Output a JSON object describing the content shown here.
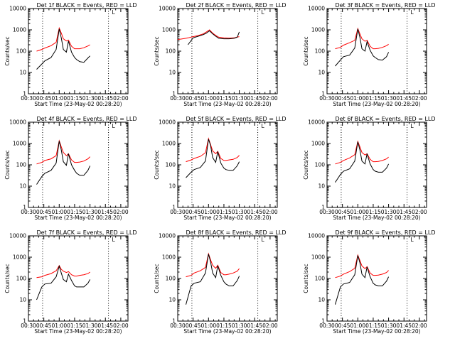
{
  "colors": {
    "events": "#000000",
    "lld": "#ff0000",
    "axis": "#000000",
    "background": "#ffffff"
  },
  "shared": {
    "xlabel": "Start Time (23-May-02 00:28:20)",
    "ylabel": "Counts/sec",
    "x_tick_labels": [
      "00:30",
      "00:45",
      "01:00",
      "01:15",
      "01:30",
      "01:45",
      "02:00"
    ],
    "x_range_min": [
      30,
      127
    ],
    "y_tick_labels": [
      "1",
      "10",
      "100",
      "1000",
      "10000"
    ],
    "y_range": [
      1,
      10000
    ],
    "y_scale": "log",
    "vlines_min": [
      43.8,
      108
    ],
    "marker_label": "L"
  },
  "chart_data": [
    {
      "type": "line",
      "title": "Det 1f BLACK = Events, RED = LLD",
      "x": [
        38,
        43,
        46,
        52,
        57,
        60,
        62,
        64,
        67,
        69,
        72,
        75,
        77,
        80,
        84,
        88,
        90
      ],
      "series": [
        {
          "name": "Events",
          "values": [
            14,
            25,
            35,
            50,
            120,
            1100,
            420,
            120,
            90,
            300,
            90,
            50,
            40,
            32,
            30,
            48,
            60
          ]
        },
        {
          "name": "LLD",
          "values": [
            100,
            120,
            140,
            180,
            260,
            1200,
            700,
            380,
            300,
            330,
            170,
            130,
            130,
            130,
            145,
            175,
            200
          ]
        }
      ]
    },
    {
      "type": "line",
      "title": "Det 2f BLACK = Events, RED = LLD",
      "x": [
        30,
        38,
        40,
        45,
        50,
        55,
        58,
        61,
        64,
        67,
        70,
        75,
        80,
        85,
        88,
        90
      ],
      "series": [
        {
          "name": "Events",
          "values": [
            null,
            null,
            200,
            420,
            500,
            600,
            700,
            900,
            650,
            500,
            400,
            380,
            380,
            400,
            450,
            800
          ]
        },
        {
          "name": "LLD",
          "values": [
            350,
            400,
            420,
            480,
            540,
            650,
            800,
            1000,
            700,
            550,
            450,
            420,
            410,
            420,
            460,
            480
          ]
        }
      ]
    },
    {
      "type": "line",
      "title": "Det 3f BLACK = Events, RED = LLD",
      "x": [
        38,
        43,
        46,
        52,
        57,
        60,
        62,
        64,
        67,
        69,
        72,
        75,
        77,
        80,
        84,
        88,
        90
      ],
      "series": [
        {
          "name": "Events",
          "values": [
            20,
            38,
            55,
            65,
            140,
            1100,
            450,
            130,
            100,
            280,
            110,
            60,
            50,
            40,
            38,
            55,
            90
          ]
        },
        {
          "name": "LLD",
          "values": [
            130,
            150,
            190,
            250,
            320,
            1150,
            650,
            380,
            290,
            320,
            170,
            130,
            130,
            135,
            150,
            180,
            210
          ]
        }
      ]
    },
    {
      "type": "line",
      "title": "Det 4f BLACK = Events, RED = LLD",
      "x": [
        38,
        43,
        46,
        52,
        57,
        60,
        62,
        64,
        67,
        69,
        72,
        75,
        77,
        80,
        84,
        88,
        90
      ],
      "series": [
        {
          "name": "Events",
          "values": [
            12,
            28,
            40,
            55,
            120,
            1300,
            500,
            140,
            95,
            330,
            100,
            55,
            40,
            32,
            32,
            55,
            90
          ]
        },
        {
          "name": "LLD",
          "values": [
            110,
            130,
            160,
            190,
            270,
            1350,
            700,
            380,
            270,
            330,
            170,
            130,
            130,
            135,
            150,
            190,
            240
          ]
        }
      ]
    },
    {
      "type": "line",
      "title": "Det 5f BLACK = Events, RED = LLD",
      "x": [
        38,
        43,
        46,
        52,
        57,
        60,
        62,
        64,
        67,
        69,
        72,
        75,
        77,
        80,
        84,
        88,
        90
      ],
      "series": [
        {
          "name": "Events",
          "values": [
            25,
            45,
            60,
            75,
            150,
            1600,
            800,
            220,
            130,
            420,
            120,
            70,
            60,
            55,
            55,
            90,
            140
          ]
        },
        {
          "name": "LLD",
          "values": [
            140,
            170,
            200,
            250,
            370,
            1700,
            900,
            450,
            330,
            430,
            200,
            160,
            160,
            170,
            180,
            220,
            280
          ]
        }
      ]
    },
    {
      "type": "line",
      "title": "Det 6f BLACK = Events, RED = LLD",
      "x": [
        38,
        43,
        46,
        52,
        57,
        60,
        62,
        64,
        67,
        69,
        72,
        75,
        77,
        80,
        84,
        88,
        90
      ],
      "series": [
        {
          "name": "Events",
          "values": [
            15,
            35,
            50,
            65,
            150,
            1200,
            500,
            150,
            110,
            330,
            110,
            60,
            50,
            45,
            45,
            70,
            110
          ]
        },
        {
          "name": "LLD",
          "values": [
            110,
            130,
            160,
            210,
            300,
            1250,
            700,
            380,
            290,
            330,
            180,
            140,
            140,
            145,
            160,
            190,
            230
          ]
        }
      ]
    },
    {
      "type": "line",
      "title": "Det 7f BLACK = Events, RED = LLD",
      "x": [
        38,
        43,
        46,
        52,
        57,
        60,
        62,
        64,
        67,
        69,
        72,
        75,
        77,
        80,
        84,
        88,
        90
      ],
      "series": [
        {
          "name": "Events",
          "values": [
            10,
            40,
            55,
            60,
            120,
            380,
            180,
            90,
            70,
            160,
            80,
            45,
            40,
            40,
            40,
            60,
            90
          ]
        },
        {
          "name": "LLD",
          "values": [
            110,
            120,
            140,
            170,
            230,
            400,
            270,
            220,
            190,
            210,
            150,
            130,
            130,
            140,
            150,
            170,
            200
          ]
        }
      ]
    },
    {
      "type": "line",
      "title": "Det 8f BLACK = Events, RED = LLD",
      "x": [
        38,
        43,
        46,
        52,
        57,
        60,
        62,
        64,
        67,
        69,
        72,
        75,
        77,
        80,
        84,
        88,
        90
      ],
      "series": [
        {
          "name": "Events",
          "values": [
            6,
            45,
            60,
            70,
            180,
            1400,
            600,
            180,
            110,
            400,
            140,
            70,
            55,
            45,
            45,
            80,
            130
          ]
        },
        {
          "name": "LLD",
          "values": [
            120,
            140,
            180,
            230,
            330,
            1450,
            750,
            420,
            300,
            420,
            190,
            150,
            150,
            160,
            180,
            220,
            290
          ]
        }
      ]
    },
    {
      "type": "line",
      "title": "Det 9f BLACK = Events, RED = LLD",
      "x": [
        38,
        43,
        46,
        52,
        57,
        60,
        62,
        64,
        67,
        69,
        72,
        75,
        77,
        80,
        84,
        88,
        90
      ],
      "series": [
        {
          "name": "Events",
          "values": [
            6,
            40,
            55,
            65,
            150,
            1200,
            550,
            160,
            110,
            350,
            120,
            60,
            50,
            45,
            45,
            75,
            120
          ]
        },
        {
          "name": "LLD",
          "values": [
            110,
            130,
            160,
            210,
            300,
            1250,
            700,
            390,
            290,
            360,
            180,
            140,
            140,
            145,
            160,
            190,
            240
          ]
        }
      ]
    }
  ]
}
